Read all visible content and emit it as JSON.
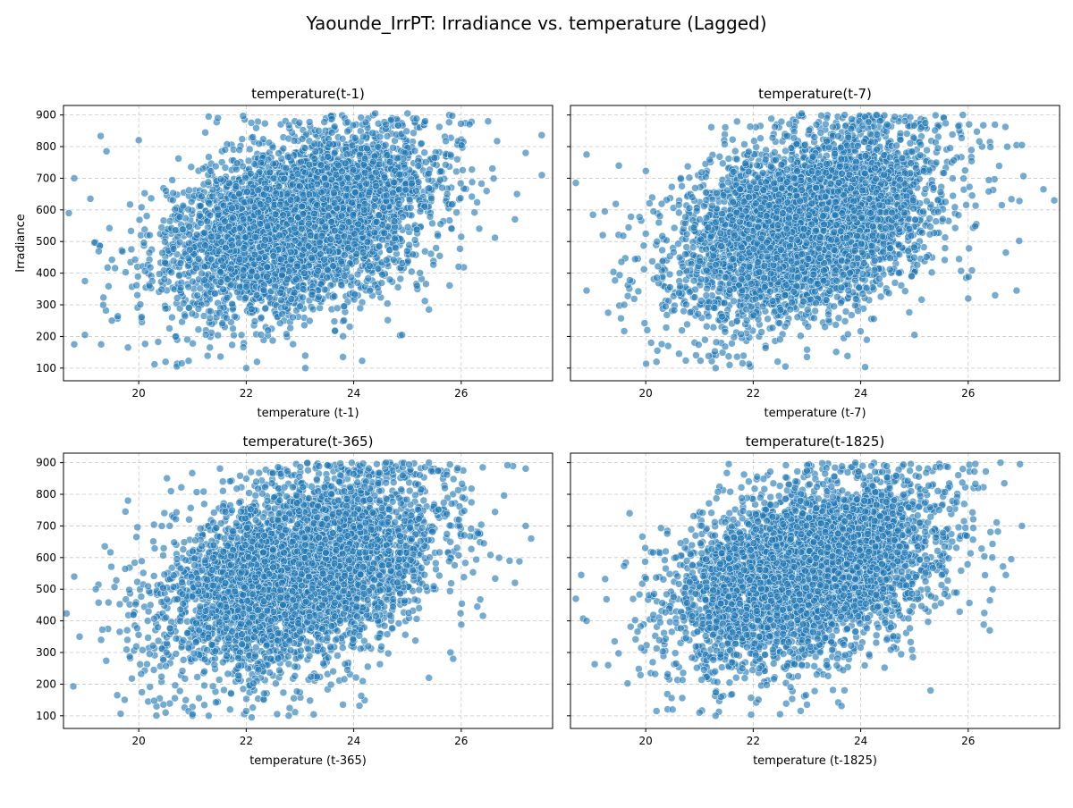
{
  "figure": {
    "suptitle": "Yaounde_IrrPT: Irradiance vs. temperature (Lagged)"
  },
  "style": {
    "marker_color": "#1f77b4",
    "marker_edge": "#ffffff",
    "grid_color": "#b0b0b0"
  },
  "chart_data": [
    {
      "type": "scatter",
      "title": "temperature(t-1)",
      "xlabel": "temperature (t-1)",
      "ylabel": "Irradiance",
      "xlim": [
        18.6,
        27.7
      ],
      "ylim": [
        60,
        930
      ],
      "xticks": [
        20,
        22,
        24,
        26
      ],
      "yticks": [
        100,
        200,
        300,
        400,
        500,
        600,
        700,
        800,
        900
      ],
      "grid": true,
      "cloud": {
        "x_mean": 23.0,
        "x_sd": 1.2,
        "y_mean": 560,
        "y_sd": 130,
        "slope": 45,
        "n": 4500,
        "seed": 11
      },
      "points": [
        {
          "x": 18.7,
          "y": 590
        },
        {
          "x": 18.8,
          "y": 700
        },
        {
          "x": 18.8,
          "y": 175
        },
        {
          "x": 19.0,
          "y": 205
        },
        {
          "x": 19.0,
          "y": 375
        },
        {
          "x": 19.1,
          "y": 635
        },
        {
          "x": 19.3,
          "y": 175
        },
        {
          "x": 19.4,
          "y": 785
        },
        {
          "x": 19.5,
          "y": 250
        },
        {
          "x": 19.8,
          "y": 165
        },
        {
          "x": 20.0,
          "y": 820
        },
        {
          "x": 20.5,
          "y": 120
        },
        {
          "x": 20.8,
          "y": 115
        },
        {
          "x": 21.3,
          "y": 895
        },
        {
          "x": 22.0,
          "y": 100
        },
        {
          "x": 22.2,
          "y": 120
        },
        {
          "x": 23.1,
          "y": 100
        },
        {
          "x": 23.8,
          "y": 135
        },
        {
          "x": 24.9,
          "y": 205
        },
        {
          "x": 25.4,
          "y": 285
        },
        {
          "x": 25.0,
          "y": 905
        },
        {
          "x": 26.0,
          "y": 515
        },
        {
          "x": 26.5,
          "y": 880
        },
        {
          "x": 27.0,
          "y": 570
        },
        {
          "x": 27.2,
          "y": 780
        },
        {
          "x": 27.5,
          "y": 710
        },
        {
          "x": 24.4,
          "y": 905
        }
      ]
    },
    {
      "type": "scatter",
      "title": "temperature(t-7)",
      "xlabel": "temperature (t-7)",
      "ylabel": "",
      "xlim": [
        18.6,
        27.7
      ],
      "ylim": [
        60,
        930
      ],
      "xticks": [
        20,
        22,
        24,
        26
      ],
      "yticks": [
        100,
        200,
        300,
        400,
        500,
        600,
        700,
        800,
        900
      ],
      "grid": true,
      "cloud": {
        "x_mean": 23.0,
        "x_sd": 1.2,
        "y_mean": 555,
        "y_sd": 135,
        "slope": 45,
        "n": 4500,
        "seed": 23
      },
      "points": [
        {
          "x": 18.7,
          "y": 685
        },
        {
          "x": 18.9,
          "y": 775
        },
        {
          "x": 18.9,
          "y": 345
        },
        {
          "x": 19.2,
          "y": 520
        },
        {
          "x": 19.3,
          "y": 275
        },
        {
          "x": 19.5,
          "y": 740
        },
        {
          "x": 19.6,
          "y": 300
        },
        {
          "x": 20.1,
          "y": 180
        },
        {
          "x": 20.2,
          "y": 120
        },
        {
          "x": 21.3,
          "y": 100
        },
        {
          "x": 21.8,
          "y": 115
        },
        {
          "x": 22.6,
          "y": 105
        },
        {
          "x": 23.0,
          "y": 135
        },
        {
          "x": 22.9,
          "y": 905
        },
        {
          "x": 23.7,
          "y": 900
        },
        {
          "x": 24.3,
          "y": 900
        },
        {
          "x": 25.0,
          "y": 205
        },
        {
          "x": 25.9,
          "y": 900
        },
        {
          "x": 26.0,
          "y": 320
        },
        {
          "x": 26.5,
          "y": 330
        },
        {
          "x": 26.9,
          "y": 345
        },
        {
          "x": 27.0,
          "y": 805
        },
        {
          "x": 27.4,
          "y": 665
        },
        {
          "x": 27.6,
          "y": 630
        },
        {
          "x": 26.7,
          "y": 465
        }
      ]
    },
    {
      "type": "scatter",
      "title": "temperature(t-365)",
      "xlabel": "temperature (t-365)",
      "ylabel": "",
      "xlim": [
        18.6,
        27.7
      ],
      "ylim": [
        60,
        930
      ],
      "xticks": [
        20,
        22,
        24,
        26
      ],
      "yticks": [
        100,
        200,
        300,
        400,
        500,
        600,
        700,
        800,
        900
      ],
      "grid": true,
      "cloud": {
        "x_mean": 23.0,
        "x_sd": 1.25,
        "y_mean": 550,
        "y_sd": 140,
        "slope": 45,
        "n": 4500,
        "seed": 37
      },
      "points": [
        {
          "x": 18.8,
          "y": 540
        },
        {
          "x": 18.9,
          "y": 350
        },
        {
          "x": 19.2,
          "y": 500
        },
        {
          "x": 19.3,
          "y": 340
        },
        {
          "x": 19.6,
          "y": 165
        },
        {
          "x": 19.8,
          "y": 780
        },
        {
          "x": 20.6,
          "y": 810
        },
        {
          "x": 20.5,
          "y": 110
        },
        {
          "x": 21.0,
          "y": 105
        },
        {
          "x": 22.1,
          "y": 95
        },
        {
          "x": 22.0,
          "y": 115
        },
        {
          "x": 23.8,
          "y": 135
        },
        {
          "x": 24.6,
          "y": 900
        },
        {
          "x": 25.4,
          "y": 900
        },
        {
          "x": 25.4,
          "y": 220
        },
        {
          "x": 25.8,
          "y": 300
        },
        {
          "x": 26.4,
          "y": 885
        },
        {
          "x": 26.9,
          "y": 590
        },
        {
          "x": 27.0,
          "y": 520
        },
        {
          "x": 27.2,
          "y": 700
        },
        {
          "x": 27.3,
          "y": 660
        },
        {
          "x": 26.3,
          "y": 445
        }
      ]
    },
    {
      "type": "scatter",
      "title": "temperature(t-1825)",
      "xlabel": "temperature (t-1825)",
      "ylabel": "",
      "xlim": [
        18.6,
        27.7
      ],
      "ylim": [
        60,
        930
      ],
      "xticks": [
        20,
        22,
        24,
        26
      ],
      "yticks": [
        100,
        200,
        300,
        400,
        500,
        600,
        700,
        800,
        900
      ],
      "grid": true,
      "cloud": {
        "x_mean": 23.0,
        "x_sd": 1.2,
        "y_mean": 555,
        "y_sd": 135,
        "slope": 45,
        "n": 4500,
        "seed": 53
      },
      "points": [
        {
          "x": 18.7,
          "y": 470
        },
        {
          "x": 18.8,
          "y": 545
        },
        {
          "x": 18.9,
          "y": 400
        },
        {
          "x": 19.3,
          "y": 260
        },
        {
          "x": 19.7,
          "y": 740
        },
        {
          "x": 20.2,
          "y": 115
        },
        {
          "x": 20.5,
          "y": 120
        },
        {
          "x": 21.0,
          "y": 110
        },
        {
          "x": 21.3,
          "y": 100
        },
        {
          "x": 22.5,
          "y": 105
        },
        {
          "x": 23.0,
          "y": 135
        },
        {
          "x": 23.9,
          "y": 900
        },
        {
          "x": 24.2,
          "y": 890
        },
        {
          "x": 25.3,
          "y": 180
        },
        {
          "x": 25.9,
          "y": 880
        },
        {
          "x": 26.6,
          "y": 900
        },
        {
          "x": 26.3,
          "y": 425
        },
        {
          "x": 26.4,
          "y": 370
        },
        {
          "x": 26.8,
          "y": 595
        },
        {
          "x": 27.0,
          "y": 700
        },
        {
          "x": 26.7,
          "y": 545
        }
      ]
    }
  ]
}
